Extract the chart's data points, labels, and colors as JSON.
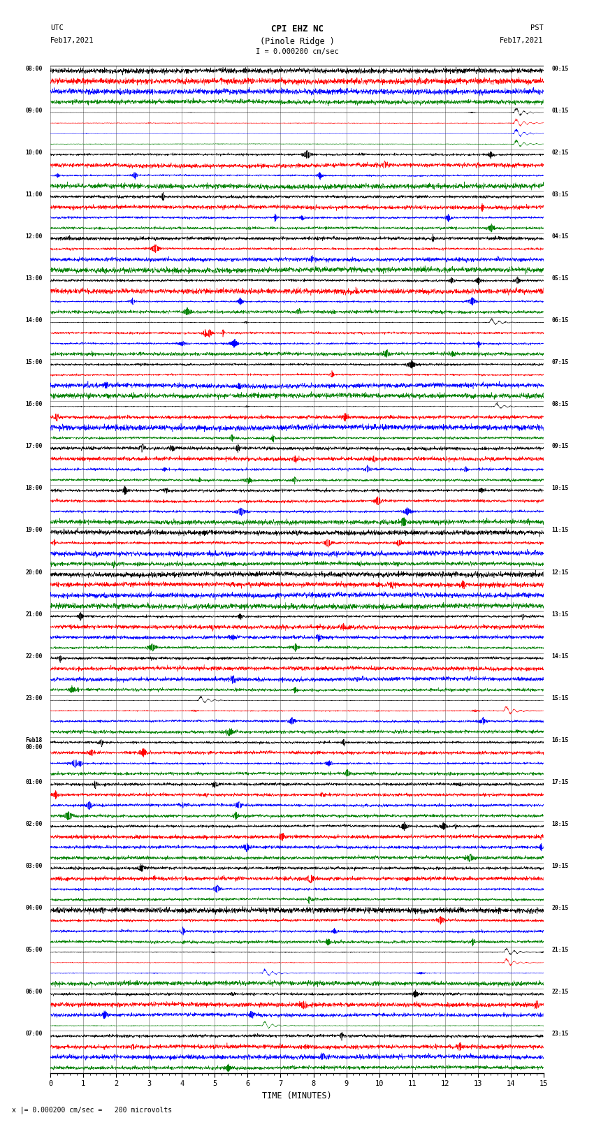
{
  "title_line1": "CPI EHZ NC",
  "title_line2": "(Pinole Ridge )",
  "scale_label": "I = 0.000200 cm/sec",
  "left_header_line1": "UTC",
  "left_header_line2": "Feb17,2021",
  "right_header_line1": "PST",
  "right_header_line2": "Feb17,2021",
  "footer_label": "x |= 0.000200 cm/sec =   200 microvolts",
  "xlabel": "TIME (MINUTES)",
  "xticks": [
    0,
    1,
    2,
    3,
    4,
    5,
    6,
    7,
    8,
    9,
    10,
    11,
    12,
    13,
    14,
    15
  ],
  "utc_labels": [
    "08:00",
    "09:00",
    "10:00",
    "11:00",
    "12:00",
    "13:00",
    "14:00",
    "15:00",
    "16:00",
    "17:00",
    "18:00",
    "19:00",
    "20:00",
    "21:00",
    "22:00",
    "23:00",
    "Feb18\n00:00",
    "01:00",
    "02:00",
    "03:00",
    "04:00",
    "05:00",
    "06:00",
    "07:00"
  ],
  "pst_labels": [
    "00:15",
    "01:15",
    "02:15",
    "03:15",
    "04:15",
    "05:15",
    "06:15",
    "07:15",
    "08:15",
    "09:15",
    "10:15",
    "11:15",
    "12:15",
    "13:15",
    "14:15",
    "15:15",
    "16:15",
    "17:15",
    "18:15",
    "19:15",
    "20:15",
    "21:15",
    "22:15",
    "23:15"
  ],
  "trace_colors": [
    "black",
    "red",
    "blue",
    "green"
  ],
  "n_groups": 24,
  "traces_per_group": 4,
  "fig_width": 8.5,
  "fig_height": 16.13,
  "background_color": "white",
  "dpi": 100,
  "seed": 42
}
